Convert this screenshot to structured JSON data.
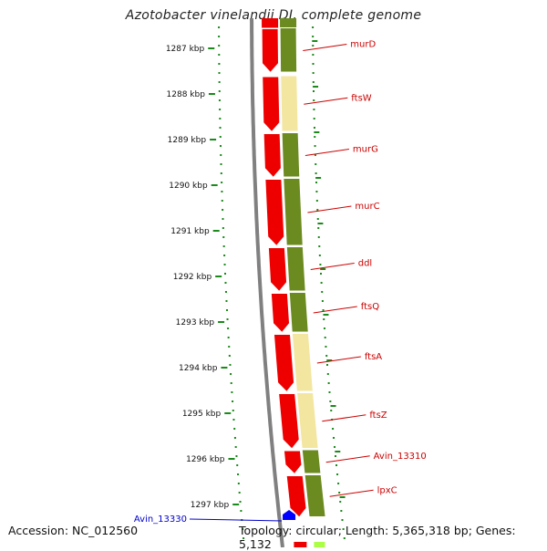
{
  "title": "Azotobacter vinelandii DJ, complete genome",
  "accession": "Accession: NC_012560",
  "topology": "Topology: circular; Length: 5,365,318 bp; Genes: 5,132",
  "colors": {
    "gene_red": "#ee0000",
    "olive": "#6b8a1f",
    "pale_yellow": "#f3e6a0",
    "tick_green": "#1a8a1a",
    "backbone_gray": "#808080",
    "label_red": "#cc0000",
    "label_blue": "#0000cc",
    "marker_blue": "#0000ff",
    "light_green": "#aaff44"
  },
  "ticks": [
    "1287 kbp",
    "1288 kbp",
    "1289 kbp",
    "1290 kbp",
    "1291 kbp",
    "1292 kbp",
    "1293 kbp",
    "1294 kbp",
    "1295 kbp",
    "1296 kbp",
    "1297 kbp"
  ],
  "genes": [
    {
      "name": "murD",
      "start": 1286.55,
      "end": 1287.55
    },
    {
      "name": "ftsW",
      "start": 1287.6,
      "end": 1288.85
    },
    {
      "name": "murG",
      "start": 1288.85,
      "end": 1289.85
    },
    {
      "name": "murC",
      "start": 1289.85,
      "end": 1291.35
    },
    {
      "name": "ddl",
      "start": 1291.35,
      "end": 1292.35
    },
    {
      "name": "ftsQ",
      "start": 1292.35,
      "end": 1293.25
    },
    {
      "name": "ftsA",
      "start": 1293.25,
      "end": 1294.55
    },
    {
      "name": "ftsZ",
      "start": 1294.55,
      "end": 1295.8
    },
    {
      "name": "Avin_13310",
      "start": 1295.8,
      "end": 1296.35
    },
    {
      "name": "lpxC",
      "start": 1296.35,
      "end": 1297.3
    }
  ],
  "blue_gene": {
    "name": "Avin_13330"
  }
}
